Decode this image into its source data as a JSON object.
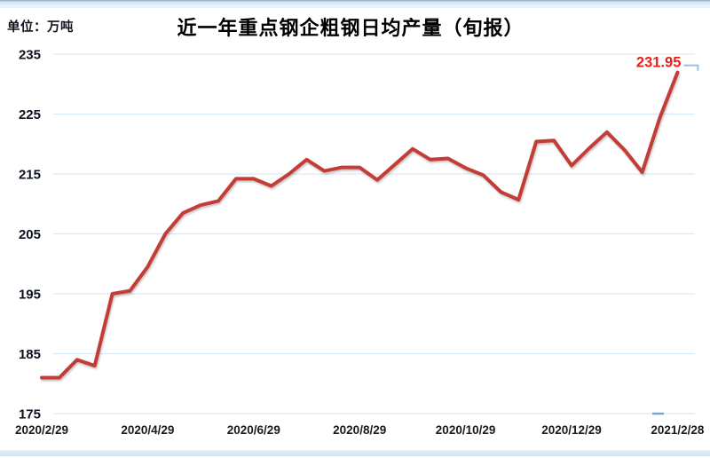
{
  "chart_data": {
    "type": "line",
    "title": "近一年重点钢企粗钢日均产量（旬报）",
    "unit_label": "单位：万吨",
    "ylabel": "万吨",
    "ylim": [
      175,
      235
    ],
    "y_ticks": [
      175,
      185,
      195,
      205,
      215,
      225,
      235
    ],
    "x_tick_labels": [
      "2020/2/29",
      "2020/4/29",
      "2020/6/29",
      "2020/8/29",
      "2020/10/29",
      "2020/12/29",
      "2021/2/28"
    ],
    "x_tick_indices": [
      0,
      6,
      12,
      18,
      24,
      30,
      36
    ],
    "grid": "horizontal",
    "legend_position": "none",
    "series": [
      {
        "name": "重点钢企粗钢日均产量(万吨)",
        "color": "#c43c36",
        "values": [
          181,
          181,
          184,
          183,
          195,
          195.5,
          199.5,
          205,
          208.5,
          209.8,
          210.5,
          214.2,
          214.2,
          213,
          215,
          217.4,
          215.5,
          216.1,
          216.1,
          214,
          216.6,
          219.2,
          217.4,
          217.6,
          216,
          214.8,
          212,
          210.7,
          220.4,
          220.6,
          216.4,
          219.3,
          222,
          219,
          215.3,
          224.4,
          231.95
        ]
      }
    ],
    "annotations": [
      {
        "text": "231.95",
        "point_index": 36,
        "color": "#e8211c"
      }
    ]
  },
  "colors": {
    "line": "#c43c36",
    "annotation_red": "#e8211c",
    "gridline": "#d9e8f5",
    "y_tick_text": "#0c1220",
    "x_tick_text": "#1a1a1a",
    "cursor_marker_blue": "#9dc0e4",
    "bottom_tick_blue": "#76a3cf"
  }
}
